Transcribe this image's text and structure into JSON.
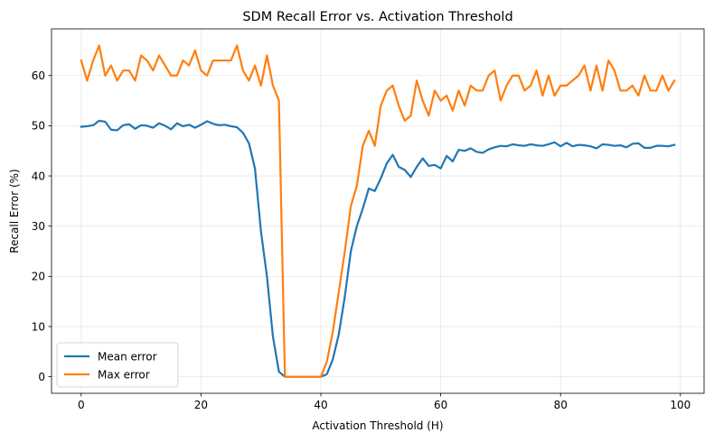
{
  "chart_data": {
    "type": "line",
    "title": "SDM Recall Error vs. Activation Threshold",
    "xlabel": "Activation Threshold (H)",
    "ylabel": "Recall Error (%)",
    "xlim": [
      -4.95,
      103.95
    ],
    "ylim": [
      -3.3,
      69.3
    ],
    "xticks": [
      0,
      20,
      40,
      60,
      80,
      100
    ],
    "yticks": [
      0,
      10,
      20,
      30,
      40,
      50,
      60
    ],
    "grid": true,
    "legend_position": "lower-left",
    "x": [
      0,
      1,
      2,
      3,
      4,
      5,
      6,
      7,
      8,
      9,
      10,
      11,
      12,
      13,
      14,
      15,
      16,
      17,
      18,
      19,
      20,
      21,
      22,
      23,
      24,
      25,
      26,
      27,
      28,
      29,
      30,
      31,
      32,
      33,
      34,
      35,
      36,
      37,
      38,
      39,
      40,
      41,
      42,
      43,
      44,
      45,
      46,
      47,
      48,
      49,
      50,
      51,
      52,
      53,
      54,
      55,
      56,
      57,
      58,
      59,
      60,
      61,
      62,
      63,
      64,
      65,
      66,
      67,
      68,
      69,
      70,
      71,
      72,
      73,
      74,
      75,
      76,
      77,
      78,
      79,
      80,
      81,
      82,
      83,
      84,
      85,
      86,
      87,
      88,
      89,
      90,
      91,
      92,
      93,
      94,
      95,
      96,
      97,
      98,
      99
    ],
    "series": [
      {
        "name": "Mean error",
        "color": "#1f77b4",
        "values": [
          49.8,
          49.9,
          50.1,
          51.0,
          50.8,
          49.2,
          49.1,
          50.1,
          50.3,
          49.4,
          50.1,
          50.0,
          49.6,
          50.5,
          50.0,
          49.3,
          50.5,
          49.9,
          50.2,
          49.6,
          50.2,
          50.9,
          50.4,
          50.1,
          50.2,
          49.9,
          49.7,
          48.6,
          46.5,
          41.5,
          29.0,
          20.0,
          8.0,
          1.0,
          0.0,
          0.0,
          0.0,
          0.0,
          0.0,
          0.0,
          0.0,
          0.5,
          3.5,
          8.5,
          16.0,
          25.0,
          30.0,
          33.5,
          37.5,
          37.0,
          39.5,
          42.5,
          44.2,
          41.8,
          41.2,
          39.8,
          41.8,
          43.5,
          42.0,
          42.2,
          41.5,
          44.0,
          42.9,
          45.2,
          45.0,
          45.5,
          44.8,
          44.6,
          45.3,
          45.7,
          46.0,
          45.9,
          46.3,
          46.1,
          46.0,
          46.3,
          46.1,
          46.0,
          46.3,
          46.7,
          45.9,
          46.6,
          45.9,
          46.2,
          46.1,
          45.9,
          45.5,
          46.3,
          46.2,
          46.0,
          46.1,
          45.7,
          46.4,
          46.5,
          45.6,
          45.6,
          46.0,
          46.0,
          45.9,
          46.2
        ]
      },
      {
        "name": "Max error",
        "color": "#ff7f0e",
        "values": [
          63,
          59,
          63,
          66,
          60,
          62,
          59,
          61,
          61,
          59,
          64,
          63,
          61,
          64,
          62,
          60,
          60,
          63,
          62,
          65,
          61,
          60,
          63,
          63,
          63,
          63,
          66,
          61,
          59,
          62,
          58,
          64,
          58,
          55,
          0,
          0,
          0,
          0,
          0,
          0,
          0,
          3,
          9,
          17,
          25,
          34,
          38,
          46,
          49,
          46,
          54,
          57,
          58,
          54,
          51,
          52,
          59,
          55,
          52,
          57,
          55,
          56,
          53,
          57,
          54,
          58,
          57,
          57,
          60,
          61,
          55,
          58,
          60,
          60,
          57,
          58,
          61,
          56,
          60,
          56,
          58,
          58,
          59,
          60,
          62,
          57,
          62,
          57,
          63,
          61,
          57,
          57,
          58,
          56,
          60,
          57,
          57,
          60,
          57,
          59
        ]
      }
    ]
  }
}
